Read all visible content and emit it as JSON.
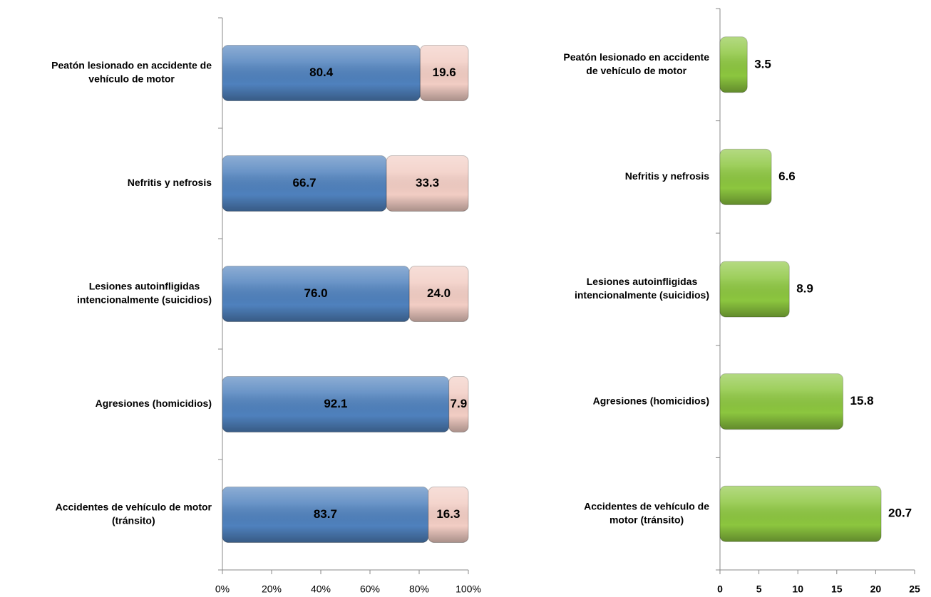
{
  "chart_data": [
    {
      "type": "stacked-bar-horizontal",
      "categories": [
        [
          "Peatón lesionado en accidente de",
          "vehículo de motor"
        ],
        [
          "Nefritis y nefrosis"
        ],
        [
          "Lesiones autoinfligidas",
          "intencionalmente (suicidios)"
        ],
        [
          "Agresiones (homicidios)"
        ],
        [
          "Accidentes de vehículo de motor",
          "(tránsito)"
        ]
      ],
      "series": [
        {
          "color": "#4f81bd",
          "values": [
            80.4,
            66.7,
            76.0,
            92.1,
            83.7
          ],
          "value_labels": [
            "80.4",
            "66.7",
            "76.0",
            "92.1",
            "83.7"
          ]
        },
        {
          "color": "#f2cdc4",
          "values": [
            19.6,
            33.3,
            24.0,
            7.9,
            16.3
          ],
          "value_labels": [
            "19.6",
            "33.3",
            "24.0",
            "7.9",
            "16.3"
          ]
        }
      ],
      "xlim": [
        0,
        100
      ],
      "xticks": [
        {
          "value": 0,
          "label": "0%"
        },
        {
          "value": 20,
          "label": "20%"
        },
        {
          "value": 40,
          "label": "40%"
        },
        {
          "value": 60,
          "label": "60%"
        },
        {
          "value": 80,
          "label": "80%"
        },
        {
          "value": 100,
          "label": "100%"
        }
      ]
    },
    {
      "type": "bar-horizontal",
      "categories": [
        [
          "Peatón lesionado en accidente",
          "de vehículo de motor"
        ],
        [
          "Nefritis y nefrosis"
        ],
        [
          "Lesiones autoinfligidas",
          "intencionalmente (suicidios)"
        ],
        [
          "Agresiones (homicidios)"
        ],
        [
          "Accidentes de vehículo de",
          "motor (tránsito)"
        ]
      ],
      "color": "#8cc63f",
      "values": [
        3.5,
        6.6,
        8.9,
        15.8,
        20.7
      ],
      "xlim": [
        0,
        25
      ],
      "xticks": [
        0,
        5,
        10,
        15,
        20,
        25
      ]
    }
  ]
}
